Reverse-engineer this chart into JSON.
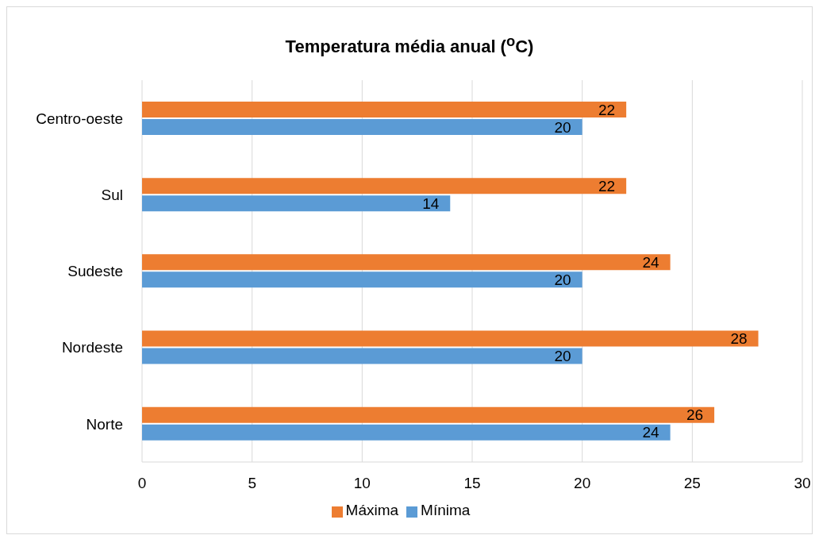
{
  "chart_data": {
    "type": "bar",
    "orientation": "horizontal",
    "title": "Temperatura média anual ($^{o}$C)",
    "categories": [
      "Centro-oeste",
      "Sul",
      "Sudeste",
      "Nordeste",
      "Norte"
    ],
    "series": [
      {
        "name": "Máxima",
        "color": "#ed7d31",
        "values": [
          22,
          22,
          24,
          28,
          26
        ]
      },
      {
        "name": "Mínima",
        "color": "#5b9bd5",
        "values": [
          20,
          14,
          20,
          20,
          24
        ]
      }
    ],
    "xlim": [
      0,
      30
    ],
    "xticks": [
      0,
      5,
      10,
      15,
      20,
      25,
      30
    ],
    "grid": "x",
    "legend": "bottom",
    "data_labels": true
  }
}
